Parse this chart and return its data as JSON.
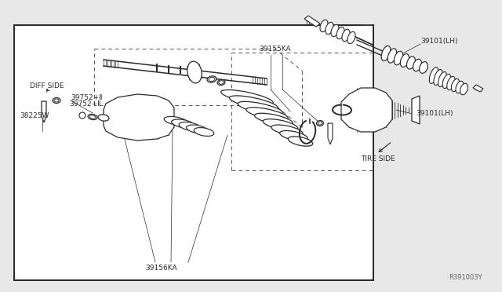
{
  "bg_color": "#e8e8e8",
  "box_bg": "#ffffff",
  "lc": "#2a2a2a",
  "labels": {
    "diff_side": "DIFF SIDE",
    "tire_side": "TIRE SIDE",
    "lh_top": "39101(LH)",
    "lh_bot": "39101(LH)",
    "ka155": "39155KA",
    "ka156": "39156KA",
    "p39752": "39752+Ⅱ",
    "p38225": "38225W",
    "ref": "R391003Y"
  },
  "fs": 6.5,
  "lw": 1.0
}
